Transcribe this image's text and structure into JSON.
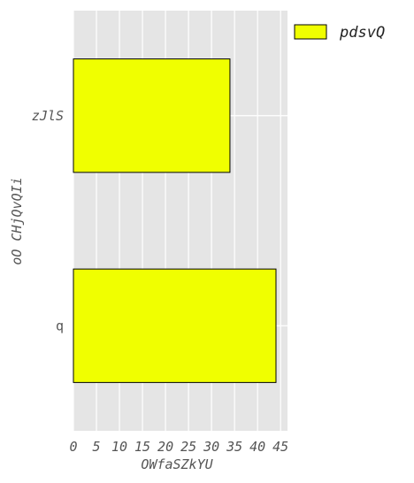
{
  "chart_data": {
    "type": "bar",
    "orientation": "horizontal",
    "categories": [
      "q",
      "zJlS"
    ],
    "series": [
      {
        "name": "pdsvQ",
        "values": [
          44,
          34
        ]
      }
    ],
    "xlabel": "OWfaSZkYU",
    "ylabel": "oO CHjQvQIi",
    "xlim": [
      0,
      46.5
    ],
    "xticks": [
      0,
      5,
      10,
      15,
      20,
      25,
      30,
      35,
      40,
      45
    ],
    "grid": true,
    "legend": "top-right",
    "colors": {
      "bar": "#f0ff00",
      "bar_edge": "#000000",
      "plot_bg": "#e5e5e5",
      "grid": "#ffffff"
    }
  }
}
